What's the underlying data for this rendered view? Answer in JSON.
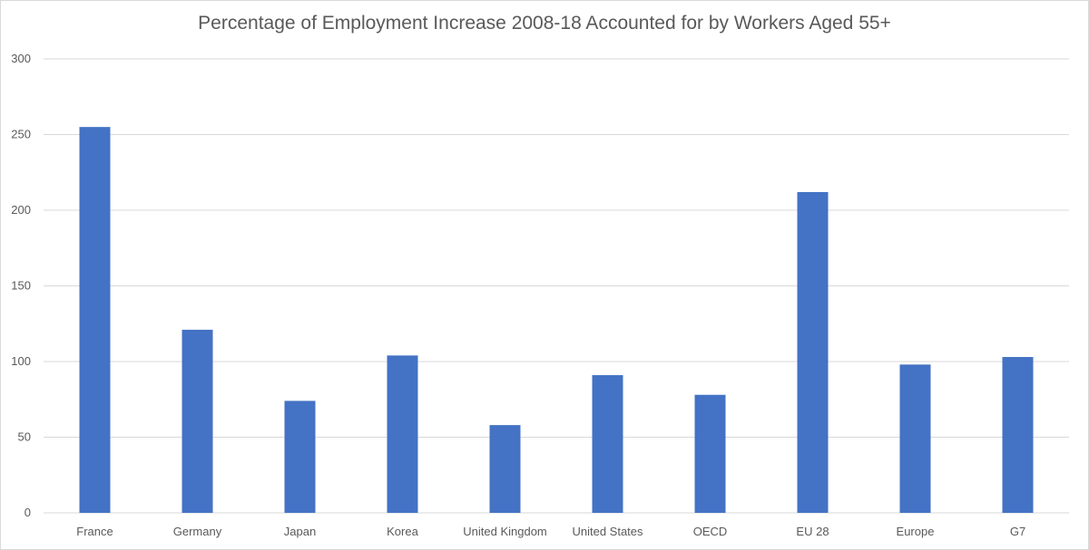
{
  "chart_data": {
    "type": "bar",
    "title": "Percentage of Employment Increase 2008-18 Accounted for by Workers Aged 55+",
    "xlabel": "",
    "ylabel": "",
    "categories": [
      "France",
      "Germany",
      "Japan",
      "Korea",
      "United Kingdom",
      "United States",
      "OECD",
      "EU 28",
      "Europe",
      "G7"
    ],
    "values": [
      255,
      121,
      74,
      104,
      58,
      91,
      78,
      212,
      98,
      103
    ],
    "ylim": [
      0,
      300
    ],
    "yticks": [
      0,
      50,
      100,
      150,
      200,
      250,
      300
    ],
    "grid": true,
    "legend": "none",
    "bar_color": "#4472C4",
    "grid_color": "#d9d9d9"
  }
}
